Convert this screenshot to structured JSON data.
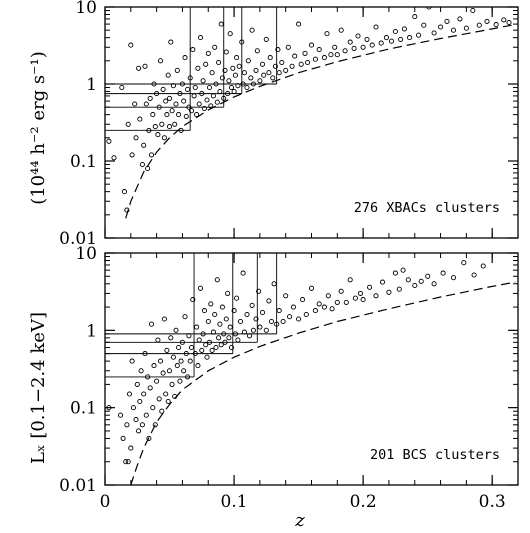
{
  "figure": {
    "ylabel_upper": "(10⁴⁴ h⁻² erg s⁻¹)",
    "ylabel_lower": "Lₓ [0.1−2.4 keV]",
    "xlabel": "z"
  },
  "chart_data": [
    {
      "type": "scatter",
      "panel": "top",
      "annotation": "276 XBACs clusters",
      "xlim": [
        0,
        0.32
      ],
      "ylim": [
        0.01,
        10
      ],
      "yscale": "log",
      "x_ticks": [
        0,
        0.1,
        0.2,
        0.3
      ],
      "x_tick_labels": [
        "",
        "",
        "",
        ""
      ],
      "y_ticks": [
        0.01,
        0.1,
        1,
        10
      ],
      "y_tick_labels": [
        "0.01",
        "0.1",
        "1",
        "10"
      ],
      "marker": "open circle",
      "grid": false,
      "flux_limit_curve": {
        "style": "dashed",
        "x": [
          0.016,
          0.02,
          0.03,
          0.04,
          0.05,
          0.06,
          0.08,
          0.1,
          0.12,
          0.15,
          0.18,
          0.22,
          0.26,
          0.3,
          0.315
        ],
        "y": [
          0.018,
          0.03,
          0.072,
          0.13,
          0.2,
          0.28,
          0.46,
          0.68,
          0.93,
          1.4,
          1.95,
          2.85,
          3.9,
          5.2,
          5.8
        ]
      },
      "vertical_lines": [
        {
          "x": 0.066,
          "y_from": 0.25,
          "y_to": 10
        },
        {
          "x": 0.092,
          "y_from": 0.5,
          "y_to": 10
        },
        {
          "x": 0.106,
          "y_from": 0.75,
          "y_to": 10
        },
        {
          "x": 0.133,
          "y_from": 1.0,
          "y_to": 10
        }
      ],
      "horizontal_lines": [
        {
          "y": 1.0,
          "x_from": 0,
          "x_to": 0.133
        },
        {
          "y": 0.75,
          "x_from": 0,
          "x_to": 0.106
        },
        {
          "y": 0.5,
          "x_from": 0,
          "x_to": 0.092
        },
        {
          "y": 0.25,
          "x_from": 0,
          "x_to": 0.066
        }
      ],
      "points": [
        [
          0.003,
          0.18
        ],
        [
          0.007,
          0.11
        ],
        [
          0.013,
          0.9
        ],
        [
          0.015,
          0.04
        ],
        [
          0.017,
          0.023
        ],
        [
          0.018,
          0.3
        ],
        [
          0.02,
          3.2
        ],
        [
          0.021,
          0.12
        ],
        [
          0.023,
          0.55
        ],
        [
          0.024,
          0.2
        ],
        [
          0.026,
          1.6
        ],
        [
          0.027,
          0.35
        ],
        [
          0.029,
          0.09
        ],
        [
          0.03,
          0.16
        ],
        [
          0.031,
          1.7
        ],
        [
          0.032,
          0.55
        ],
        [
          0.033,
          0.08
        ],
        [
          0.034,
          0.25
        ],
        [
          0.035,
          0.65
        ],
        [
          0.036,
          0.12
        ],
        [
          0.037,
          0.4
        ],
        [
          0.038,
          1.0
        ],
        [
          0.039,
          0.28
        ],
        [
          0.04,
          0.75
        ],
        [
          0.041,
          0.22
        ],
        [
          0.042,
          0.5
        ],
        [
          0.043,
          2.0
        ],
        [
          0.044,
          0.3
        ],
        [
          0.045,
          0.85
        ],
        [
          0.046,
          0.2
        ],
        [
          0.047,
          0.6
        ],
        [
          0.048,
          0.4
        ],
        [
          0.049,
          1.3
        ],
        [
          0.05,
          0.28
        ],
        [
          0.05,
          0.65
        ],
        [
          0.051,
          3.5
        ],
        [
          0.052,
          0.45
        ],
        [
          0.053,
          0.95
        ],
        [
          0.054,
          0.3
        ],
        [
          0.055,
          0.55
        ],
        [
          0.056,
          1.5
        ],
        [
          0.057,
          0.4
        ],
        [
          0.058,
          0.75
        ],
        [
          0.059,
          0.25
        ],
        [
          0.06,
          1.0
        ],
        [
          0.061,
          0.6
        ],
        [
          0.062,
          2.2
        ],
        [
          0.063,
          0.38
        ],
        [
          0.064,
          0.85
        ],
        [
          0.065,
          0.5
        ],
        [
          0.066,
          1.2
        ],
        [
          0.067,
          0.45
        ],
        [
          0.068,
          2.8
        ],
        [
          0.069,
          0.7
        ],
        [
          0.07,
          0.9
        ],
        [
          0.071,
          0.4
        ],
        [
          0.072,
          1.6
        ],
        [
          0.073,
          0.55
        ],
        [
          0.074,
          4.0
        ],
        [
          0.075,
          0.75
        ],
        [
          0.076,
          1.1
        ],
        [
          0.077,
          0.48
        ],
        [
          0.078,
          1.8
        ],
        [
          0.079,
          0.62
        ],
        [
          0.08,
          2.5
        ],
        [
          0.081,
          0.9
        ],
        [
          0.082,
          0.52
        ],
        [
          0.083,
          1.4
        ],
        [
          0.084,
          0.7
        ],
        [
          0.085,
          3.0
        ],
        [
          0.086,
          1.0
        ],
        [
          0.087,
          0.58
        ],
        [
          0.088,
          1.9
        ],
        [
          0.089,
          0.8
        ],
        [
          0.09,
          6.0
        ],
        [
          0.091,
          1.2
        ],
        [
          0.092,
          0.65
        ],
        [
          0.093,
          1.5
        ],
        [
          0.094,
          2.6
        ],
        [
          0.095,
          0.75
        ],
        [
          0.096,
          1.1
        ],
        [
          0.097,
          4.5
        ],
        [
          0.098,
          0.9
        ],
        [
          0.099,
          1.6
        ],
        [
          0.1,
          0.8
        ],
        [
          0.101,
          1.3
        ],
        [
          0.102,
          2.2
        ],
        [
          0.103,
          0.95
        ],
        [
          0.104,
          1.7
        ],
        [
          0.106,
          3.5
        ],
        [
          0.107,
          1.0
        ],
        [
          0.108,
          1.4
        ],
        [
          0.11,
          0.9
        ],
        [
          0.111,
          2.0
        ],
        [
          0.113,
          1.2
        ],
        [
          0.114,
          5.0
        ],
        [
          0.115,
          1.0
        ],
        [
          0.117,
          1.5
        ],
        [
          0.118,
          2.7
        ],
        [
          0.12,
          1.1
        ],
        [
          0.122,
          1.8
        ],
        [
          0.123,
          1.3
        ],
        [
          0.125,
          3.8
        ],
        [
          0.127,
          1.4
        ],
        [
          0.128,
          2.2
        ],
        [
          0.13,
          1.2
        ],
        [
          0.132,
          1.7
        ],
        [
          0.134,
          2.8
        ],
        [
          0.135,
          1.4
        ],
        [
          0.137,
          1.9
        ],
        [
          0.14,
          1.5
        ],
        [
          0.142,
          3.0
        ],
        [
          0.145,
          1.7
        ],
        [
          0.147,
          2.3
        ],
        [
          0.15,
          6.0
        ],
        [
          0.152,
          1.8
        ],
        [
          0.155,
          2.5
        ],
        [
          0.157,
          1.9
        ],
        [
          0.16,
          3.2
        ],
        [
          0.163,
          2.1
        ],
        [
          0.166,
          2.8
        ],
        [
          0.17,
          2.2
        ],
        [
          0.172,
          4.5
        ],
        [
          0.175,
          2.4
        ],
        [
          0.178,
          3.0
        ],
        [
          0.18,
          2.4
        ],
        [
          0.183,
          5.0
        ],
        [
          0.186,
          2.7
        ],
        [
          0.19,
          3.5
        ],
        [
          0.193,
          2.9
        ],
        [
          0.196,
          4.2
        ],
        [
          0.2,
          3.0
        ],
        [
          0.203,
          3.8
        ],
        [
          0.207,
          3.2
        ],
        [
          0.21,
          5.5
        ],
        [
          0.214,
          3.4
        ],
        [
          0.218,
          4.0
        ],
        [
          0.222,
          3.6
        ],
        [
          0.225,
          4.8
        ],
        [
          0.229,
          3.8
        ],
        [
          0.232,
          5.2
        ],
        [
          0.236,
          4.0
        ],
        [
          0.24,
          7.5
        ],
        [
          0.243,
          4.3
        ],
        [
          0.247,
          5.8
        ],
        [
          0.251,
          10.0
        ],
        [
          0.255,
          4.6
        ],
        [
          0.26,
          5.5
        ],
        [
          0.265,
          6.5
        ],
        [
          0.27,
          5.0
        ],
        [
          0.275,
          7.0
        ],
        [
          0.28,
          5.3
        ],
        [
          0.285,
          9.0
        ],
        [
          0.29,
          5.8
        ],
        [
          0.296,
          6.5
        ],
        [
          0.303,
          5.9
        ],
        [
          0.309,
          6.8
        ],
        [
          0.313,
          6.3
        ]
      ]
    },
    {
      "type": "scatter",
      "panel": "bottom",
      "annotation": "201 BCS clusters",
      "xlim": [
        0,
        0.32
      ],
      "ylim": [
        0.01,
        10
      ],
      "yscale": "log",
      "x_ticks": [
        0,
        0.1,
        0.2,
        0.3
      ],
      "x_tick_labels": [
        "0",
        "0.1",
        "0.2",
        "0.3"
      ],
      "y_ticks": [
        0.01,
        0.1,
        1,
        10
      ],
      "y_tick_labels": [
        "0.01",
        "0.1",
        "1",
        "10"
      ],
      "marker": "open circle",
      "grid": false,
      "flux_limit_curve": {
        "style": "dashed",
        "x": [
          0.02,
          0.025,
          0.03,
          0.04,
          0.05,
          0.06,
          0.08,
          0.1,
          0.12,
          0.15,
          0.18,
          0.22,
          0.26,
          0.3,
          0.318
        ],
        "y": [
          0.01,
          0.018,
          0.03,
          0.065,
          0.11,
          0.17,
          0.3,
          0.45,
          0.62,
          0.92,
          1.3,
          1.9,
          2.7,
          3.7,
          4.2
        ]
      },
      "vertical_lines": [
        {
          "x": 0.069,
          "y_from": 0.25,
          "y_to": 10
        },
        {
          "x": 0.099,
          "y_from": 0.5,
          "y_to": 10
        },
        {
          "x": 0.118,
          "y_from": 0.7,
          "y_to": 10
        },
        {
          "x": 0.133,
          "y_from": 0.9,
          "y_to": 10
        }
      ],
      "horizontal_lines": [
        {
          "y": 0.9,
          "x_from": 0,
          "x_to": 0.133
        },
        {
          "y": 0.7,
          "x_from": 0,
          "x_to": 0.118
        },
        {
          "y": 0.5,
          "x_from": 0,
          "x_to": 0.099
        },
        {
          "y": 0.25,
          "x_from": 0,
          "x_to": 0.069
        }
      ],
      "points": [
        [
          0.003,
          0.1
        ],
        [
          0.012,
          0.08
        ],
        [
          0.014,
          0.04
        ],
        [
          0.016,
          0.02
        ],
        [
          0.017,
          0.06
        ],
        [
          0.018,
          0.02
        ],
        [
          0.019,
          0.15
        ],
        [
          0.02,
          0.03
        ],
        [
          0.021,
          0.4
        ],
        [
          0.022,
          0.1
        ],
        [
          0.024,
          0.07
        ],
        [
          0.025,
          0.2
        ],
        [
          0.026,
          0.05
        ],
        [
          0.027,
          0.12
        ],
        [
          0.028,
          0.3
        ],
        [
          0.029,
          0.06
        ],
        [
          0.03,
          0.15
        ],
        [
          0.031,
          0.5
        ],
        [
          0.032,
          0.08
        ],
        [
          0.033,
          0.25
        ],
        [
          0.034,
          0.04
        ],
        [
          0.035,
          0.18
        ],
        [
          0.036,
          1.2
        ],
        [
          0.037,
          0.1
        ],
        [
          0.038,
          0.35
        ],
        [
          0.039,
          0.06
        ],
        [
          0.04,
          0.22
        ],
        [
          0.041,
          0.75
        ],
        [
          0.042,
          0.13
        ],
        [
          0.043,
          0.4
        ],
        [
          0.044,
          0.09
        ],
        [
          0.045,
          0.28
        ],
        [
          0.046,
          1.4
        ],
        [
          0.047,
          0.15
        ],
        [
          0.048,
          0.55
        ],
        [
          0.049,
          0.12
        ],
        [
          0.05,
          0.3
        ],
        [
          0.051,
          0.8
        ],
        [
          0.052,
          0.2
        ],
        [
          0.053,
          0.45
        ],
        [
          0.054,
          0.14
        ],
        [
          0.055,
          1.0
        ],
        [
          0.056,
          0.35
        ],
        [
          0.057,
          0.6
        ],
        [
          0.058,
          0.22
        ],
        [
          0.059,
          0.4
        ],
        [
          0.06,
          0.7
        ],
        [
          0.061,
          0.3
        ],
        [
          0.062,
          1.5
        ],
        [
          0.063,
          0.5
        ],
        [
          0.064,
          0.25
        ],
        [
          0.065,
          0.85
        ],
        [
          0.066,
          0.4
        ],
        [
          0.067,
          0.6
        ],
        [
          0.068,
          2.5
        ],
        [
          0.07,
          0.5
        ],
        [
          0.071,
          1.1
        ],
        [
          0.072,
          0.35
        ],
        [
          0.073,
          0.75
        ],
        [
          0.074,
          3.5
        ],
        [
          0.075,
          0.55
        ],
        [
          0.076,
          0.9
        ],
        [
          0.077,
          1.8
        ],
        [
          0.078,
          0.65
        ],
        [
          0.079,
          0.45
        ],
        [
          0.08,
          1.3
        ],
        [
          0.081,
          0.7
        ],
        [
          0.082,
          2.2
        ],
        [
          0.083,
          0.55
        ],
        [
          0.084,
          0.95
        ],
        [
          0.085,
          1.6
        ],
        [
          0.086,
          0.6
        ],
        [
          0.087,
          4.5
        ],
        [
          0.088,
          0.8
        ],
        [
          0.089,
          1.2
        ],
        [
          0.09,
          0.65
        ],
        [
          0.091,
          2.0
        ],
        [
          0.092,
          0.9
        ],
        [
          0.093,
          0.7
        ],
        [
          0.094,
          1.4
        ],
        [
          0.095,
          3.0
        ],
        [
          0.096,
          0.8
        ],
        [
          0.097,
          1.1
        ],
        [
          0.098,
          0.6
        ],
        [
          0.1,
          1.8
        ],
        [
          0.101,
          0.9
        ],
        [
          0.102,
          2.6
        ],
        [
          0.103,
          0.75
        ],
        [
          0.105,
          1.3
        ],
        [
          0.107,
          5.5
        ],
        [
          0.108,
          0.95
        ],
        [
          0.11,
          1.6
        ],
        [
          0.112,
          0.85
        ],
        [
          0.114,
          2.1
        ],
        [
          0.115,
          1.0
        ],
        [
          0.117,
          1.4
        ],
        [
          0.119,
          3.2
        ],
        [
          0.12,
          1.1
        ],
        [
          0.122,
          1.7
        ],
        [
          0.125,
          1.0
        ],
        [
          0.127,
          2.4
        ],
        [
          0.129,
          1.3
        ],
        [
          0.131,
          4.0
        ],
        [
          0.133,
          1.2
        ],
        [
          0.135,
          1.8
        ],
        [
          0.138,
          1.3
        ],
        [
          0.14,
          2.8
        ],
        [
          0.143,
          1.5
        ],
        [
          0.146,
          2.0
        ],
        [
          0.15,
          1.4
        ],
        [
          0.153,
          2.5
        ],
        [
          0.156,
          1.6
        ],
        [
          0.16,
          3.5
        ],
        [
          0.163,
          1.8
        ],
        [
          0.166,
          2.2
        ],
        [
          0.17,
          2.0
        ],
        [
          0.173,
          2.8
        ],
        [
          0.176,
          1.9
        ],
        [
          0.18,
          2.3
        ],
        [
          0.183,
          3.2
        ],
        [
          0.187,
          2.3
        ],
        [
          0.19,
          4.5
        ],
        [
          0.194,
          2.6
        ],
        [
          0.198,
          3.0
        ],
        [
          0.2,
          2.5
        ],
        [
          0.205,
          3.6
        ],
        [
          0.21,
          2.8
        ],
        [
          0.215,
          4.2
        ],
        [
          0.22,
          3.1
        ],
        [
          0.225,
          5.5
        ],
        [
          0.228,
          3.4
        ],
        [
          0.231,
          6.0
        ],
        [
          0.235,
          4.5
        ],
        [
          0.24,
          3.8
        ],
        [
          0.245,
          4.3
        ],
        [
          0.25,
          5.0
        ],
        [
          0.255,
          4.0
        ],
        [
          0.262,
          5.5
        ],
        [
          0.27,
          4.8
        ],
        [
          0.278,
          7.5
        ],
        [
          0.286,
          5.2
        ],
        [
          0.293,
          6.8
        ]
      ]
    }
  ]
}
